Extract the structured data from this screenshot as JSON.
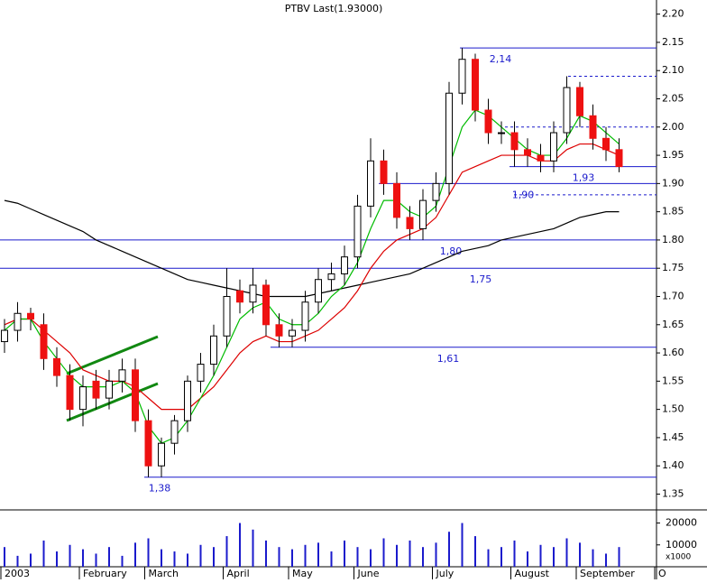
{
  "chart_data": {
    "type": "candlestick",
    "title": "PTBV Last(1.93000)",
    "ylim": [
      1.33,
      2.225
    ],
    "yticks": [
      {
        "value": 1.35,
        "label": "1.35"
      },
      {
        "value": 1.4,
        "label": "1.40"
      },
      {
        "value": 1.45,
        "label": "1.45"
      },
      {
        "value": 1.5,
        "label": "1.50"
      },
      {
        "value": 1.55,
        "label": "1.55"
      },
      {
        "value": 1.6,
        "label": "1.60"
      },
      {
        "value": 1.65,
        "label": "1.65"
      },
      {
        "value": 1.7,
        "label": "1.70"
      },
      {
        "value": 1.75,
        "label": "1.75"
      },
      {
        "value": 1.8,
        "label": "1.80"
      },
      {
        "value": 1.85,
        "label": "1.85"
      },
      {
        "value": 1.9,
        "label": "1.90"
      },
      {
        "value": 1.95,
        "label": "1.95"
      },
      {
        "value": 2.0,
        "label": "2.00"
      },
      {
        "value": 2.05,
        "label": "2.05"
      },
      {
        "value": 2.1,
        "label": "2.10"
      },
      {
        "value": 2.15,
        "label": "2.15"
      },
      {
        "value": 2.2,
        "label": "2.20"
      }
    ],
    "xticks": [
      {
        "value": 0,
        "label": "2003"
      },
      {
        "value": 6,
        "label": "February"
      },
      {
        "value": 11,
        "label": "March"
      },
      {
        "value": 17,
        "label": "April"
      },
      {
        "value": 22,
        "label": "May"
      },
      {
        "value": 27,
        "label": "June"
      },
      {
        "value": 33,
        "label": "July"
      },
      {
        "value": 39,
        "label": "August"
      },
      {
        "value": 44,
        "label": "September"
      },
      {
        "value": 50,
        "label": "O"
      }
    ],
    "open": [
      1.62,
      1.64,
      1.67,
      1.65,
      1.59,
      1.56,
      1.5,
      1.55,
      1.52,
      1.55,
      1.57,
      1.48,
      1.4,
      1.44,
      1.48,
      1.55,
      1.58,
      1.63,
      1.71,
      1.69,
      1.72,
      1.65,
      1.63,
      1.64,
      1.69,
      1.73,
      1.74,
      1.77,
      1.86,
      1.94,
      1.9,
      1.84,
      1.82,
      1.87,
      1.9,
      2.06,
      2.12,
      2.03,
      1.99,
      1.99,
      1.96,
      1.95,
      1.94,
      1.99,
      2.07,
      2.02,
      1.98,
      1.96
    ],
    "high": [
      1.66,
      1.69,
      1.68,
      1.67,
      1.61,
      1.58,
      1.56,
      1.57,
      1.57,
      1.59,
      1.59,
      1.5,
      1.45,
      1.49,
      1.56,
      1.6,
      1.65,
      1.75,
      1.73,
      1.75,
      1.73,
      1.67,
      1.66,
      1.71,
      1.75,
      1.76,
      1.79,
      1.88,
      1.98,
      1.96,
      1.92,
      1.86,
      1.89,
      1.92,
      2.08,
      2.14,
      2.13,
      2.05,
      2.01,
      2.01,
      1.98,
      1.97,
      2.01,
      2.09,
      2.08,
      2.04,
      2.0,
      1.98
    ],
    "low": [
      1.6,
      1.62,
      1.64,
      1.57,
      1.54,
      1.48,
      1.47,
      1.5,
      1.5,
      1.53,
      1.46,
      1.38,
      1.38,
      1.42,
      1.46,
      1.53,
      1.56,
      1.61,
      1.67,
      1.67,
      1.63,
      1.61,
      1.61,
      1.62,
      1.67,
      1.71,
      1.72,
      1.75,
      1.84,
      1.88,
      1.82,
      1.8,
      1.8,
      1.85,
      1.88,
      2.04,
      2.01,
      1.97,
      1.97,
      1.93,
      1.93,
      1.92,
      1.92,
      1.97,
      2.0,
      1.96,
      1.94,
      1.92
    ],
    "close": [
      1.64,
      1.67,
      1.66,
      1.59,
      1.56,
      1.5,
      1.54,
      1.52,
      1.55,
      1.57,
      1.48,
      1.4,
      1.44,
      1.48,
      1.55,
      1.58,
      1.63,
      1.7,
      1.69,
      1.72,
      1.65,
      1.63,
      1.64,
      1.69,
      1.73,
      1.74,
      1.77,
      1.86,
      1.94,
      1.9,
      1.84,
      1.82,
      1.87,
      1.9,
      2.06,
      2.12,
      2.03,
      1.99,
      1.99,
      1.96,
      1.95,
      1.94,
      1.99,
      2.07,
      2.02,
      1.98,
      1.96,
      1.93
    ],
    "up_color": "#ffffff",
    "down_color": "#ee1111",
    "series": [
      {
        "color": "#000000",
        "values": [
          1.87,
          1.865,
          1.855,
          1.845,
          1.835,
          1.825,
          1.815,
          1.8,
          1.79,
          1.78,
          1.77,
          1.76,
          1.75,
          1.74,
          1.73,
          1.725,
          1.72,
          1.715,
          1.71,
          1.705,
          1.7,
          1.7,
          1.7,
          1.7,
          1.705,
          1.71,
          1.715,
          1.72,
          1.725,
          1.73,
          1.735,
          1.74,
          1.75,
          1.76,
          1.77,
          1.78,
          1.785,
          1.79,
          1.8,
          1.805,
          1.81,
          1.815,
          1.82,
          1.83,
          1.84,
          1.845,
          1.85,
          1.85
        ]
      },
      {
        "color": "#dd0000",
        "values": [
          1.65,
          1.66,
          1.66,
          1.64,
          1.62,
          1.6,
          1.57,
          1.56,
          1.55,
          1.55,
          1.54,
          1.52,
          1.5,
          1.5,
          1.5,
          1.52,
          1.54,
          1.57,
          1.6,
          1.62,
          1.63,
          1.62,
          1.62,
          1.63,
          1.64,
          1.66,
          1.68,
          1.71,
          1.75,
          1.78,
          1.8,
          1.81,
          1.82,
          1.84,
          1.88,
          1.92,
          1.93,
          1.94,
          1.95,
          1.95,
          1.95,
          1.94,
          1.94,
          1.96,
          1.97,
          1.97,
          1.96,
          1.95
        ]
      },
      {
        "color": "#00bb00",
        "values": [
          1.64,
          1.66,
          1.66,
          1.62,
          1.59,
          1.56,
          1.54,
          1.54,
          1.54,
          1.55,
          1.53,
          1.47,
          1.44,
          1.45,
          1.48,
          1.52,
          1.56,
          1.61,
          1.66,
          1.68,
          1.69,
          1.66,
          1.65,
          1.65,
          1.67,
          1.7,
          1.72,
          1.76,
          1.82,
          1.87,
          1.87,
          1.85,
          1.84,
          1.86,
          1.93,
          2.0,
          2.03,
          2.02,
          2.0,
          1.98,
          1.96,
          1.95,
          1.95,
          1.98,
          2.02,
          2.01,
          1.99,
          1.97
        ]
      }
    ],
    "levels": [
      {
        "value": 2.14,
        "label": "2,14",
        "style": "solid"
      },
      {
        "value": 2.09,
        "style": "dashed"
      },
      {
        "value": 2.0,
        "style": "dashed"
      },
      {
        "value": 1.93,
        "label": "1,93",
        "style": "solid"
      },
      {
        "value": 1.9,
        "label": "1,90",
        "style": "solid"
      },
      {
        "value": 1.88,
        "style": "dashed"
      },
      {
        "value": 1.8,
        "label": "1,80",
        "style": "solid"
      },
      {
        "value": 1.75,
        "label": "1,75",
        "style": "solid"
      },
      {
        "value": 1.61,
        "label": "1,61",
        "style": "solid"
      },
      {
        "value": 1.38,
        "label": "1,38",
        "style": "solid"
      }
    ],
    "level_color": "#1a1acc",
    "volume": [
      9000,
      5000,
      6000,
      12000,
      7000,
      10000,
      8000,
      6000,
      9000,
      5000,
      11000,
      13000,
      8000,
      7000,
      6000,
      10000,
      9000,
      14000,
      20000,
      17000,
      12000,
      9000,
      8000,
      10000,
      11000,
      7000,
      12000,
      9000,
      8000,
      13000,
      10000,
      12000,
      9000,
      11000,
      16000,
      20000,
      14000,
      8000,
      9000,
      12000,
      7000,
      10000,
      9000,
      13000,
      11000,
      8000,
      6000,
      9000
    ],
    "volume_color": "#1a1acc",
    "volume_lim": [
      0,
      26000
    ],
    "volume_ticks": [
      10000,
      20000
    ],
    "volume_unit": "x1000"
  }
}
